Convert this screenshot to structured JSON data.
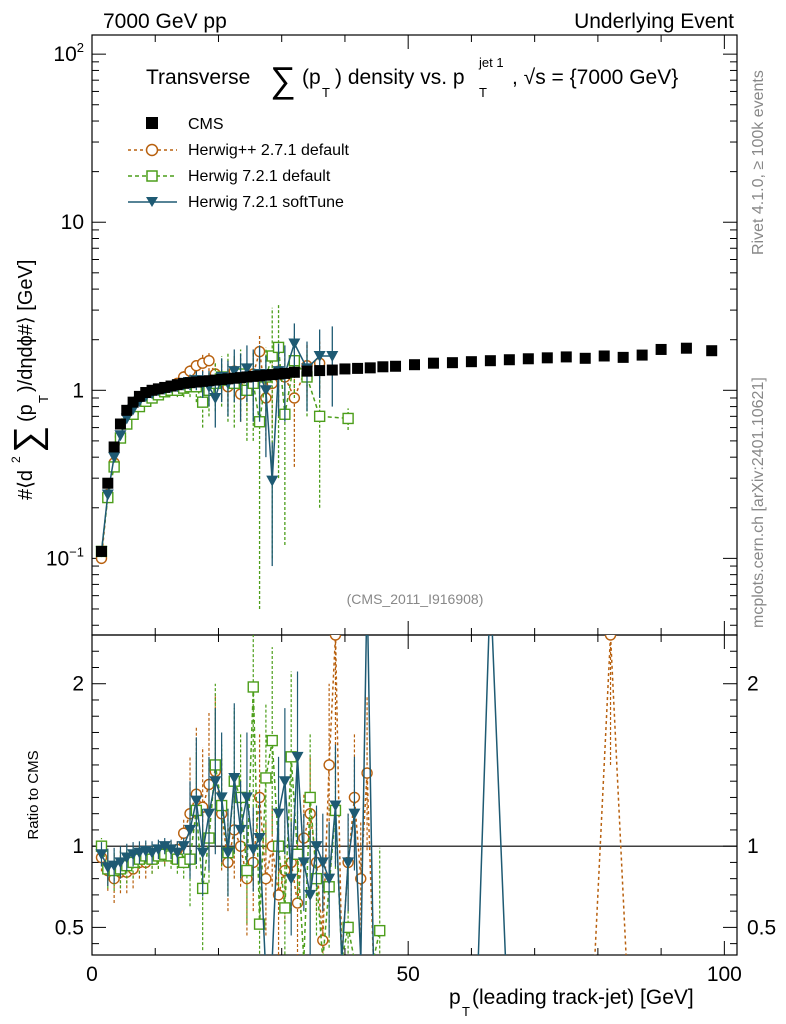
{
  "header": {
    "left": "7000 GeV pp",
    "right": "Underlying Event",
    "title": "Transverse ∑(pₜ) density vs. pₜ jet 1, √s = {7000 GeV}",
    "title_main": "Transverse",
    "title_sum": "∑",
    "title_mid1": "(p",
    "title_sub1": "T",
    "title_mid2": ") density vs. p",
    "title_sub2": "T",
    "title_sup2": "jet 1",
    "title_tail": ", √s = {7000 GeV}"
  },
  "side_labels": {
    "rivet": "Rivet 4.1.0, ≥ 100k events",
    "mcplots": "mcplots.cern.ch [arXiv:2401.10621]"
  },
  "watermark": "(CMS_2011_I916908)",
  "ylabel_main": "#⟨d² ∑(pₜ)/dηdϕ#⟩ [GeV]",
  "ylabel_parts": {
    "a": "#⟨d",
    "sup": "2",
    "sum": "∑",
    "b": "(p",
    "sub": "T",
    "c": ")/dηdϕ#⟩ [GeV]"
  },
  "ylabel_ratio": "Ratio to CMS",
  "xlabel": {
    "p": "p",
    "sub": "T",
    "rest": " (leading track-jet) [GeV]"
  },
  "colors": {
    "cms": "#000000",
    "herwigpp": "#b8600e",
    "h721": "#4c9e1a",
    "soft": "#1e5a73"
  },
  "chart_data": [
    {
      "type": "scatter",
      "title": "Transverse sum(pT) density vs. pT jet 1",
      "xlabel": "pT (leading track-jet) [GeV]",
      "ylabel": "<d2 sum(pT)/d eta d phi> [GeV]",
      "xlim": [
        0,
        102
      ],
      "ylim": [
        0.035,
        130
      ],
      "yscale": "log",
      "yticks": [
        {
          "v": 0.1,
          "b": "10",
          "e": "−1"
        },
        {
          "v": 1,
          "b": "1",
          "e": ""
        },
        {
          "v": 10,
          "b": "10",
          "e": ""
        },
        {
          "v": 100,
          "b": "10",
          "e": "2"
        }
      ],
      "xticks": [
        0,
        50,
        100
      ],
      "legend": [
        "CMS",
        "Herwig++ 2.7.1 default",
        "Herwig 7.2.1 default",
        "Herwig 7.2.1 softTune"
      ],
      "series": [
        {
          "name": "CMS",
          "key": "cms",
          "x": [
            1.5,
            2.5,
            3.5,
            4.5,
            5.5,
            6.5,
            7.5,
            8.5,
            9.5,
            10.5,
            11.5,
            12.5,
            13.5,
            14.5,
            15.5,
            16.5,
            17.5,
            18.5,
            19.5,
            20.5,
            21.5,
            22.5,
            23.5,
            24.5,
            25.5,
            26.5,
            27.5,
            28.5,
            29.5,
            30.5,
            32,
            34,
            36,
            38,
            40,
            42,
            44,
            46,
            48,
            51,
            54,
            57,
            60,
            63,
            66,
            69,
            72,
            75,
            78,
            81,
            84,
            87,
            90,
            94,
            98
          ],
          "y": [
            0.11,
            0.28,
            0.46,
            0.63,
            0.76,
            0.85,
            0.92,
            0.97,
            1.0,
            1.02,
            1.04,
            1.06,
            1.08,
            1.1,
            1.11,
            1.12,
            1.13,
            1.14,
            1.15,
            1.16,
            1.17,
            1.18,
            1.19,
            1.2,
            1.21,
            1.22,
            1.23,
            1.24,
            1.25,
            1.26,
            1.28,
            1.3,
            1.31,
            1.32,
            1.34,
            1.35,
            1.36,
            1.38,
            1.39,
            1.42,
            1.45,
            1.46,
            1.48,
            1.5,
            1.52,
            1.54,
            1.56,
            1.58,
            1.55,
            1.6,
            1.57,
            1.62,
            1.75,
            1.78,
            1.72
          ]
        },
        {
          "name": "Herwig++ 2.7.1 default",
          "key": "herwigpp",
          "x": [
            1.5,
            2.5,
            3.5,
            4.5,
            5.5,
            6.5,
            7.5,
            8.5,
            9.5,
            10.5,
            11.5,
            12.5,
            13.5,
            14.5,
            15.5,
            16.5,
            17.5,
            18.5,
            19.5,
            20.5,
            21.5,
            22.5,
            23.5,
            24.5,
            25.5,
            26.5,
            27.5,
            28.5,
            29.5,
            30.5,
            32,
            34,
            36
          ],
          "y": [
            0.1,
            0.24,
            0.37,
            0.53,
            0.64,
            0.73,
            0.82,
            0.88,
            0.92,
            0.96,
            1.0,
            1.05,
            1.1,
            1.2,
            1.3,
            1.4,
            1.45,
            1.5,
            1.25,
            1.15,
            1.05,
            1.3,
            0.95,
            1.1,
            1.25,
            1.7,
            0.9,
            1.1,
            1.3,
            1.2,
            0.9,
            1.4,
            1.45
          ],
          "err": [
            0.005,
            0.01,
            0.015,
            0.02,
            0.02,
            0.03,
            0.03,
            0.03,
            0.04,
            0.05,
            0.05,
            0.06,
            0.08,
            0.1,
            0.12,
            0.14,
            0.18,
            0.2,
            0.2,
            0.25,
            0.25,
            0.3,
            0.3,
            0.35,
            0.4,
            0.45,
            0.4,
            0.5,
            0.5,
            0.5,
            0.55,
            0.5,
            0.5
          ],
          "ratio_x": [
            1.5,
            2.5,
            3.5,
            4.5,
            5.5,
            6.5,
            7.5,
            8.5,
            9.5,
            10.5,
            11.5,
            12.5,
            13.5,
            14.5,
            15.5,
            16.5,
            17.5,
            18.5,
            19.5,
            20.5,
            21.5,
            22.5,
            23.5,
            24.5,
            25.5,
            26.5,
            27.5,
            28.5,
            29.5,
            30.5,
            31.5,
            32.5,
            33.5,
            34.5,
            35.5,
            36.5,
            37.5,
            38.5,
            39.5,
            40.5,
            41.5,
            42.5,
            43.5,
            44.5,
            45.5,
            79.5,
            82,
            84.5
          ],
          "ratio": [
            0.93,
            0.85,
            0.8,
            0.84,
            0.84,
            0.86,
            0.9,
            0.9,
            0.92,
            0.94,
            0.96,
            0.96,
            0.98,
            1.08,
            1.2,
            1.32,
            1.24,
            1.38,
            1.46,
            1.2,
            0.9,
            1.1,
            1.0,
            0.8,
            0.9,
            1.3,
            0.8,
            1.0,
            0.7,
            0.85,
            0.9,
            0.65,
            1.05,
            1.2,
            0.9,
            0.42,
            1.5,
            2.3,
            0.3,
            0.9,
            1.3,
            0.8,
            1.45,
            0.3,
            0.2,
            0.3,
            2.3,
            0.3
          ]
        },
        {
          "name": "Herwig 7.2.1 default",
          "key": "h721",
          "x": [
            1.5,
            2.5,
            3.5,
            4.5,
            5.5,
            6.5,
            7.5,
            8.5,
            9.5,
            10.5,
            11.5,
            12.5,
            13.5,
            14.5,
            15.5,
            16.5,
            17.5,
            18.5,
            19.5,
            20.5,
            21.5,
            22.5,
            23.5,
            24.5,
            25.5,
            26.5,
            27.5,
            28.5,
            29.5,
            30.5,
            32,
            34,
            36,
            40.5
          ],
          "y": [
            0.11,
            0.23,
            0.35,
            0.52,
            0.63,
            0.72,
            0.8,
            0.86,
            0.9,
            0.94,
            0.98,
            1.0,
            1.0,
            1.03,
            1.05,
            1.05,
            0.85,
            1.0,
            1.1,
            1.2,
            1.15,
            1.1,
            1.25,
            1.0,
            1.1,
            0.65,
            1.2,
            1.6,
            1.8,
            0.72,
            1.5,
            1.2,
            0.7,
            0.68
          ],
          "err": [
            0.005,
            0.01,
            0.015,
            0.02,
            0.02,
            0.03,
            0.03,
            0.03,
            0.04,
            0.05,
            0.05,
            0.07,
            0.09,
            0.12,
            0.14,
            0.2,
            0.25,
            0.3,
            0.35,
            0.4,
            0.5,
            0.5,
            0.5,
            0.5,
            0.6,
            0.6,
            0.6,
            1.5,
            1.5,
            0.6,
            0.6,
            0.5,
            0.5,
            0.1
          ],
          "ratio_x": [
            1.5,
            2.5,
            3.5,
            4.5,
            5.5,
            6.5,
            7.5,
            8.5,
            9.5,
            10.5,
            11.5,
            12.5,
            13.5,
            14.5,
            15.5,
            16.5,
            17.5,
            18.5,
            19.5,
            20.5,
            21.5,
            22.5,
            23.5,
            24.5,
            25.5,
            26.5,
            27.5,
            28.5,
            29.5,
            30.5,
            31.5,
            32.5,
            33.5,
            34.5,
            35.5,
            36.5,
            37.5,
            38.5,
            39.5,
            40.5,
            41.5,
            42.5,
            43.5,
            44.5,
            45.5
          ],
          "ratio": [
            1.0,
            0.86,
            0.85,
            0.86,
            0.88,
            0.9,
            0.92,
            0.94,
            0.92,
            0.94,
            0.95,
            0.94,
            0.92,
            0.9,
            0.92,
            1.22,
            0.74,
            1.05,
            1.5,
            1.25,
            0.96,
            1.4,
            1.3,
            0.85,
            1.98,
            0.52,
            1.42,
            1.65,
            1.0,
            0.62,
            1.55,
            0.95,
            0.3,
            1.3,
            0.8,
            0.3,
            0.75,
            1.22,
            0.3,
            0.5,
            0.3,
            0.3,
            0.3,
            0.3,
            0.48
          ]
        },
        {
          "name": "Herwig 7.2.1 softTune",
          "key": "soft",
          "x": [
            1.5,
            2.5,
            3.5,
            4.5,
            5.5,
            6.5,
            7.5,
            8.5,
            9.5,
            10.5,
            11.5,
            12.5,
            13.5,
            14.5,
            15.5,
            16.5,
            17.5,
            18.5,
            19.5,
            20.5,
            21.5,
            22.5,
            23.5,
            24.5,
            25.5,
            26.5,
            27.5,
            28.5,
            29.5,
            30.5,
            32,
            34,
            36,
            38
          ],
          "y": [
            0.11,
            0.24,
            0.4,
            0.54,
            0.68,
            0.77,
            0.86,
            0.92,
            0.96,
            1.0,
            1.02,
            1.04,
            1.06,
            1.1,
            1.12,
            1.15,
            1.1,
            1.05,
            0.9,
            1.2,
            1.1,
            1.3,
            1.15,
            1.35,
            1.2,
            1.25,
            1.0,
            0.29,
            1.3,
            1.25,
            1.9,
            1.35,
            1.6,
            1.6
          ],
          "err": [
            0.005,
            0.01,
            0.015,
            0.02,
            0.02,
            0.03,
            0.03,
            0.03,
            0.04,
            0.05,
            0.05,
            0.06,
            0.08,
            0.1,
            0.12,
            0.15,
            0.2,
            0.25,
            0.3,
            0.35,
            0.4,
            0.45,
            0.5,
            0.5,
            0.55,
            0.6,
            0.6,
            0.2,
            0.6,
            0.6,
            0.6,
            0.6,
            0.7,
            0.8
          ],
          "ratio_x": [
            1.5,
            2.5,
            3.5,
            4.5,
            5.5,
            6.5,
            7.5,
            8.5,
            9.5,
            10.5,
            11.5,
            12.5,
            13.5,
            14.5,
            15.5,
            16.5,
            17.5,
            18.5,
            19.5,
            20.5,
            21.5,
            22.5,
            23.5,
            24.5,
            25.5,
            26.5,
            27.5,
            28.5,
            29.5,
            30.5,
            31.5,
            32.5,
            33.5,
            34.5,
            35.5,
            36.5,
            37.5,
            38.5,
            39.5,
            40.5,
            41.5,
            42.5,
            43.5,
            44.5,
            45.5,
            61,
            63,
            65.5
          ],
          "ratio": [
            0.95,
            0.87,
            0.88,
            0.9,
            0.93,
            0.95,
            0.96,
            0.97,
            0.96,
            0.98,
            1.0,
            0.98,
            0.96,
            1.0,
            1.1,
            1.28,
            0.96,
            1.2,
            1.4,
            1.3,
            0.96,
            1.42,
            1.1,
            1.3,
            0.98,
            1.05,
            0.2,
            0.3,
            1.2,
            1.4,
            0.8,
            1.55,
            0.9,
            0.7,
            1.0,
            0.9,
            0.8,
            1.25,
            0.3,
            0.9,
            1.2,
            0.3,
            2.6,
            0.3,
            0.2,
            0.2,
            2.6,
            0.2
          ]
        }
      ]
    },
    {
      "type": "line",
      "title": "Ratio to CMS",
      "ylabel": "Ratio to CMS",
      "xlim": [
        0,
        102
      ],
      "ylim": [
        0.33,
        2.3
      ],
      "yticks": [
        0.5,
        1,
        2
      ],
      "xticks": [
        0,
        50,
        100
      ],
      "reference": 1
    }
  ]
}
